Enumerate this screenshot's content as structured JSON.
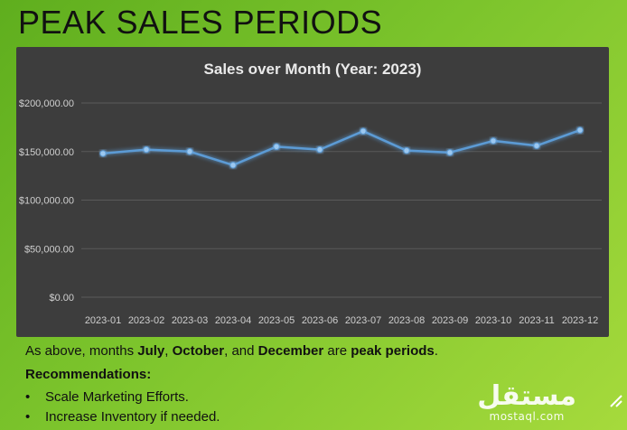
{
  "slide": {
    "title": "PEAK SALES PERIODS"
  },
  "text": {
    "line1_pre": "As above, months ",
    "m1": "July",
    "sep1": ", ",
    "m2": "October",
    "sep2": ", and ",
    "m3": "December",
    "mid": " are ",
    "peak": "peak periods",
    "end": ".",
    "rec_heading": "Recommendations:",
    "bullets": [
      "Scale Marketing Efforts.",
      "Increase Inventory if needed."
    ]
  },
  "watermark": {
    "arabic": "مستقل",
    "domain": "mostaql.com"
  },
  "colors": {
    "panel": "#3d3d3d",
    "line": "#5b9bd5",
    "grid": "#5a5a5a",
    "background": "#7cc42c"
  },
  "chart_data": {
    "type": "line",
    "title": "Sales over Month (Year: 2023)",
    "xlabel": "",
    "ylabel": "",
    "categories": [
      "2023-01",
      "2023-02",
      "2023-03",
      "2023-04",
      "2023-05",
      "2023-06",
      "2023-07",
      "2023-08",
      "2023-09",
      "2023-10",
      "2023-11",
      "2023-12"
    ],
    "values": [
      148000,
      152000,
      150000,
      136000,
      155000,
      152000,
      171000,
      151000,
      149000,
      161000,
      156000,
      172000
    ],
    "ylim": [
      0,
      200000
    ],
    "yticks": [
      0,
      50000,
      100000,
      150000,
      200000
    ],
    "ytick_labels": [
      "$0.00",
      "$50,000.00",
      "$100,000.00",
      "$150,000.00",
      "$200,000.00"
    ],
    "grid": true,
    "legend": "none"
  }
}
